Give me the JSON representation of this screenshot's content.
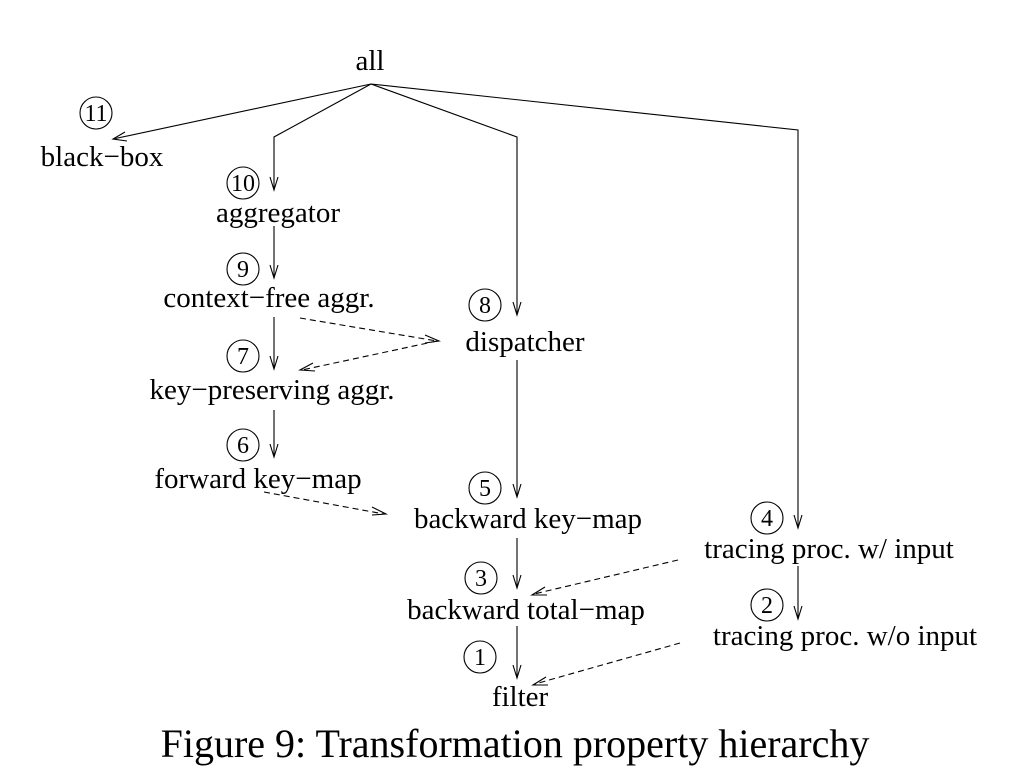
{
  "diagram": {
    "root_label": "all",
    "nodes": {
      "black_box": {
        "number": "11",
        "label": "black−box"
      },
      "aggregator": {
        "number": "10",
        "label": "aggregator"
      },
      "context_free_aggr": {
        "number": "9",
        "label": "context−free aggr."
      },
      "dispatcher": {
        "number": "8",
        "label": "dispatcher"
      },
      "key_preserving_aggr": {
        "number": "7",
        "label": "key−preserving aggr."
      },
      "forward_key_map": {
        "number": "6",
        "label": "forward key−map"
      },
      "backward_key_map": {
        "number": "5",
        "label": "backward key−map"
      },
      "tracing_proc_w_input": {
        "number": "4",
        "label": "tracing proc. w/ input"
      },
      "backward_total_map": {
        "number": "3",
        "label": "backward total−map"
      },
      "tracing_proc_wo_input": {
        "number": "2",
        "label": "tracing proc. w/o input"
      },
      "filter": {
        "number": "1",
        "label": "filter"
      }
    }
  },
  "caption": "Figure 9: Transformation property hierarchy"
}
